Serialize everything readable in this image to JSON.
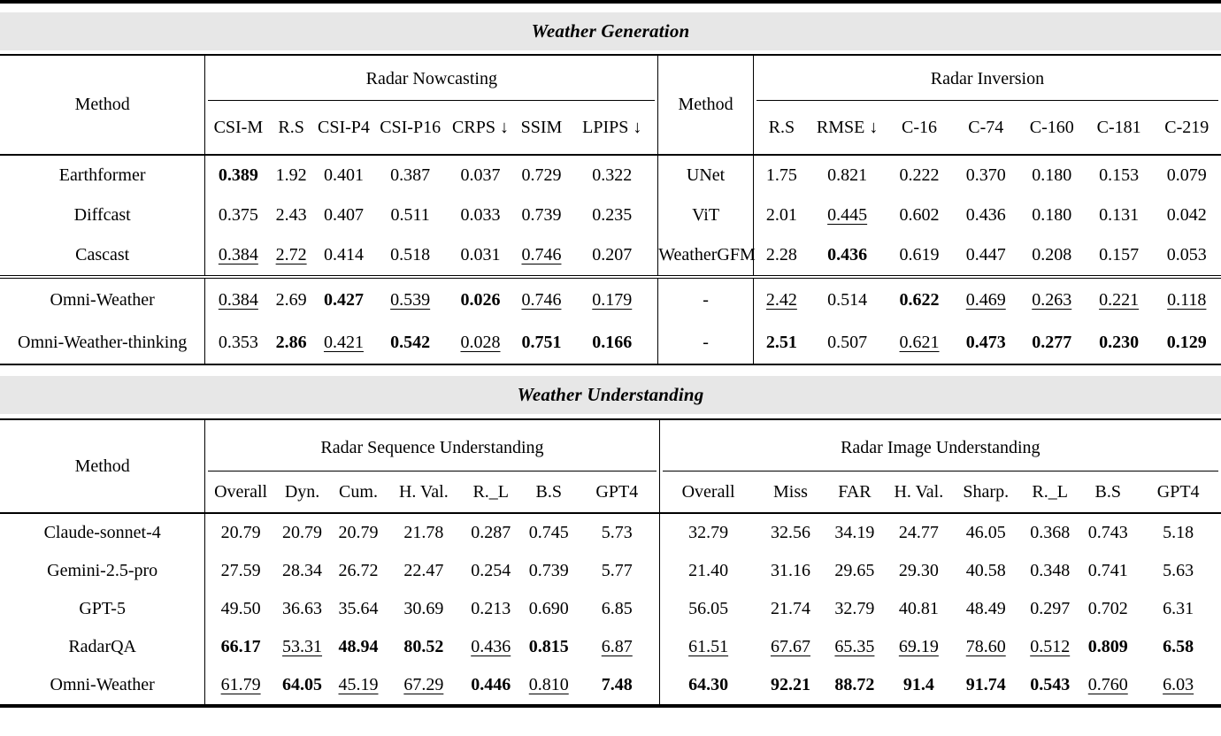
{
  "palette": {
    "band_color": "#e7e7e7",
    "rule_color": "#000000",
    "background": "#ffffff"
  },
  "generation": {
    "title": "Weather Generation",
    "left": {
      "method_header": "Method",
      "group": "Radar Nowcasting",
      "columns": [
        "CSI-M",
        "R.S",
        "CSI-P4",
        "CSI-P16",
        "CRPS ↓",
        "SSIM",
        "LPIPS ↓"
      ],
      "baseline_rows": [
        {
          "method": "Earthformer",
          "v": [
            "0.389",
            "1.92",
            "0.401",
            "0.387",
            "0.037",
            "0.729",
            "0.322"
          ],
          "s": [
            "b",
            "",
            "",
            "",
            "",
            "",
            ""
          ]
        },
        {
          "method": "Diffcast",
          "v": [
            "0.375",
            "2.43",
            "0.407",
            "0.511",
            "0.033",
            "0.739",
            "0.235"
          ],
          "s": [
            "",
            "",
            "",
            "",
            "",
            "",
            ""
          ]
        },
        {
          "method": "Cascast",
          "v": [
            "0.384",
            "2.72",
            "0.414",
            "0.518",
            "0.031",
            "0.746",
            "0.207"
          ],
          "s": [
            "u",
            "u",
            "",
            "",
            "",
            "u",
            ""
          ]
        }
      ],
      "ours_rows": [
        {
          "method": "Omni-Weather",
          "v": [
            "0.384",
            "2.69",
            "0.427",
            "0.539",
            "0.026",
            "0.746",
            "0.179"
          ],
          "s": [
            "u",
            "",
            "b",
            "u",
            "b",
            "u",
            "u"
          ]
        },
        {
          "method": "Omni-Weather-thinking",
          "v": [
            "0.353",
            "2.86",
            "0.421",
            "0.542",
            "0.028",
            "0.751",
            "0.166"
          ],
          "s": [
            "",
            "b",
            "u",
            "b",
            "u",
            "b",
            "b"
          ]
        }
      ]
    },
    "right": {
      "method_header": "Method",
      "group": "Radar Inversion",
      "columns": [
        "R.S",
        "RMSE ↓",
        "C-16",
        "C-74",
        "C-160",
        "C-181",
        "C-219"
      ],
      "baseline_rows": [
        {
          "method": "UNet",
          "v": [
            "1.75",
            "0.821",
            "0.222",
            "0.370",
            "0.180",
            "0.153",
            "0.079"
          ],
          "s": [
            "",
            "",
            "",
            "",
            "",
            "",
            ""
          ]
        },
        {
          "method": "ViT",
          "v": [
            "2.01",
            "0.445",
            "0.602",
            "0.436",
            "0.180",
            "0.131",
            "0.042"
          ],
          "s": [
            "",
            "u",
            "",
            "",
            "",
            "",
            ""
          ]
        },
        {
          "method": "WeatherGFM",
          "v": [
            "2.28",
            "0.436",
            "0.619",
            "0.447",
            "0.208",
            "0.157",
            "0.053"
          ],
          "s": [
            "",
            "b",
            "",
            "",
            "",
            "",
            ""
          ]
        }
      ],
      "ours_rows": [
        {
          "method": "-",
          "v": [
            "2.42",
            "0.514",
            "0.622",
            "0.469",
            "0.263",
            "0.221",
            "0.118"
          ],
          "s": [
            "u",
            "",
            "b",
            "u",
            "u",
            "u",
            "u"
          ]
        },
        {
          "method": "-",
          "v": [
            "2.51",
            "0.507",
            "0.621",
            "0.473",
            "0.277",
            "0.230",
            "0.129"
          ],
          "s": [
            "b",
            "",
            "u",
            "b",
            "b",
            "b",
            "b"
          ]
        }
      ]
    }
  },
  "understanding": {
    "title": "Weather Understanding",
    "method_header": "Method",
    "seq": {
      "group": "Radar Sequence Understanding",
      "columns": [
        "Overall",
        "Dyn.",
        "Cum.",
        "H. Val.",
        "R._L",
        "B.S",
        "GPT4"
      ]
    },
    "img": {
      "group": "Radar Image Understanding",
      "columns": [
        "Overall",
        "Miss",
        "FAR",
        "H. Val.",
        "Sharp.",
        "R._L",
        "B.S",
        "GPT4"
      ]
    },
    "rows": [
      {
        "method": "Claude-sonnet-4",
        "seq_v": [
          "20.79",
          "20.79",
          "20.79",
          "21.78",
          "0.287",
          "0.745",
          "5.73"
        ],
        "seq_s": [
          "",
          "",
          "",
          "",
          "",
          "",
          ""
        ],
        "img_v": [
          "32.79",
          "32.56",
          "34.19",
          "24.77",
          "46.05",
          "0.368",
          "0.743",
          "5.18"
        ],
        "img_s": [
          "",
          "",
          "",
          "",
          "",
          "",
          "",
          ""
        ]
      },
      {
        "method": "Gemini-2.5-pro",
        "seq_v": [
          "27.59",
          "28.34",
          "26.72",
          "22.47",
          "0.254",
          "0.739",
          "5.77"
        ],
        "seq_s": [
          "",
          "",
          "",
          "",
          "",
          "",
          ""
        ],
        "img_v": [
          "21.40",
          "31.16",
          "29.65",
          "29.30",
          "40.58",
          "0.348",
          "0.741",
          "5.63"
        ],
        "img_s": [
          "",
          "",
          "",
          "",
          "",
          "",
          "",
          ""
        ]
      },
      {
        "method": "GPT-5",
        "seq_v": [
          "49.50",
          "36.63",
          "35.64",
          "30.69",
          "0.213",
          "0.690",
          "6.85"
        ],
        "seq_s": [
          "",
          "",
          "",
          "",
          "",
          "",
          ""
        ],
        "img_v": [
          "56.05",
          "21.74",
          "32.79",
          "40.81",
          "48.49",
          "0.297",
          "0.702",
          "6.31"
        ],
        "img_s": [
          "",
          "",
          "",
          "",
          "",
          "",
          "",
          ""
        ]
      },
      {
        "method": "RadarQA",
        "seq_v": [
          "66.17",
          "53.31",
          "48.94",
          "80.52",
          "0.436",
          "0.815",
          "6.87"
        ],
        "seq_s": [
          "b",
          "u",
          "b",
          "b",
          "u",
          "b",
          "u"
        ],
        "img_v": [
          "61.51",
          "67.67",
          "65.35",
          "69.19",
          "78.60",
          "0.512",
          "0.809",
          "6.58"
        ],
        "img_s": [
          "u",
          "u",
          "u",
          "u",
          "u",
          "u",
          "b",
          "b"
        ]
      },
      {
        "method": "Omni-Weather",
        "seq_v": [
          "61.79",
          "64.05",
          "45.19",
          "67.29",
          "0.446",
          "0.810",
          "7.48"
        ],
        "seq_s": [
          "u",
          "b",
          "u",
          "u",
          "b",
          "u",
          "b"
        ],
        "img_v": [
          "64.30",
          "92.21",
          "88.72",
          "91.4",
          "91.74",
          "0.543",
          "0.760",
          "6.03"
        ],
        "img_s": [
          "b",
          "b",
          "b",
          "b",
          "b",
          "b",
          "u",
          "u"
        ]
      }
    ]
  }
}
